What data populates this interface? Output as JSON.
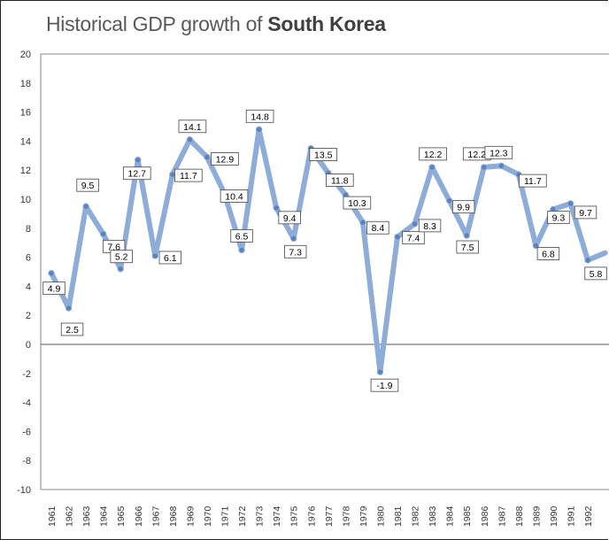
{
  "title_main": "Historical GDP growth of",
  "title_country": "South Korea",
  "chart_data": {
    "type": "line",
    "title": "Historical GDP growth of South Korea",
    "xlabel": "",
    "ylabel": "",
    "ylim": [
      -10,
      20
    ],
    "y_ticks": [
      20,
      18,
      16,
      14,
      12,
      10,
      8,
      6,
      4,
      2,
      0,
      -2,
      -4,
      -6,
      -8,
      -10
    ],
    "grid": false,
    "legend": "none",
    "line_color": "#8EACD8",
    "marker_color": "#5B82C0",
    "categories": [
      "1961",
      "1962",
      "1963",
      "1964",
      "1965",
      "1966",
      "1967",
      "1968",
      "1969",
      "1970",
      "1971",
      "1972",
      "1973",
      "1974",
      "1975",
      "1976",
      "1977",
      "1978",
      "1979",
      "1980",
      "1981",
      "1982",
      "1983",
      "1984",
      "1985",
      "1986",
      "1987",
      "1988",
      "1989",
      "1990",
      "1991",
      "1992"
    ],
    "series": [
      {
        "values": [
          4.9,
          2.5,
          9.5,
          7.6,
          5.2,
          12.7,
          6.1,
          11.7,
          14.1,
          12.9,
          10.4,
          6.5,
          14.8,
          9.4,
          7.3,
          13.5,
          11.8,
          10.3,
          8.4,
          -1.9,
          7.4,
          8.3,
          12.2,
          9.9,
          7.5,
          12.2,
          12.3,
          11.7,
          6.8,
          9.3,
          9.7,
          5.8
        ]
      }
    ],
    "data_labels": [
      "4.9",
      "2.5",
      "9.5",
      "7.6",
      "5.2",
      "12.7",
      "6.1",
      "11.7",
      "14.1",
      "12.9",
      "10.4",
      "6.5",
      "14.8",
      "9.4",
      "7.3",
      "13.5",
      "11.8",
      "10.3",
      "8.4",
      "-1.9",
      "7.4",
      "8.3",
      "12.2",
      "9.9",
      "7.5",
      "12.2",
      "12.3",
      "11.7",
      "6.8",
      "9.3",
      "9.7",
      "5.8"
    ],
    "trailing_value": 6.3
  }
}
